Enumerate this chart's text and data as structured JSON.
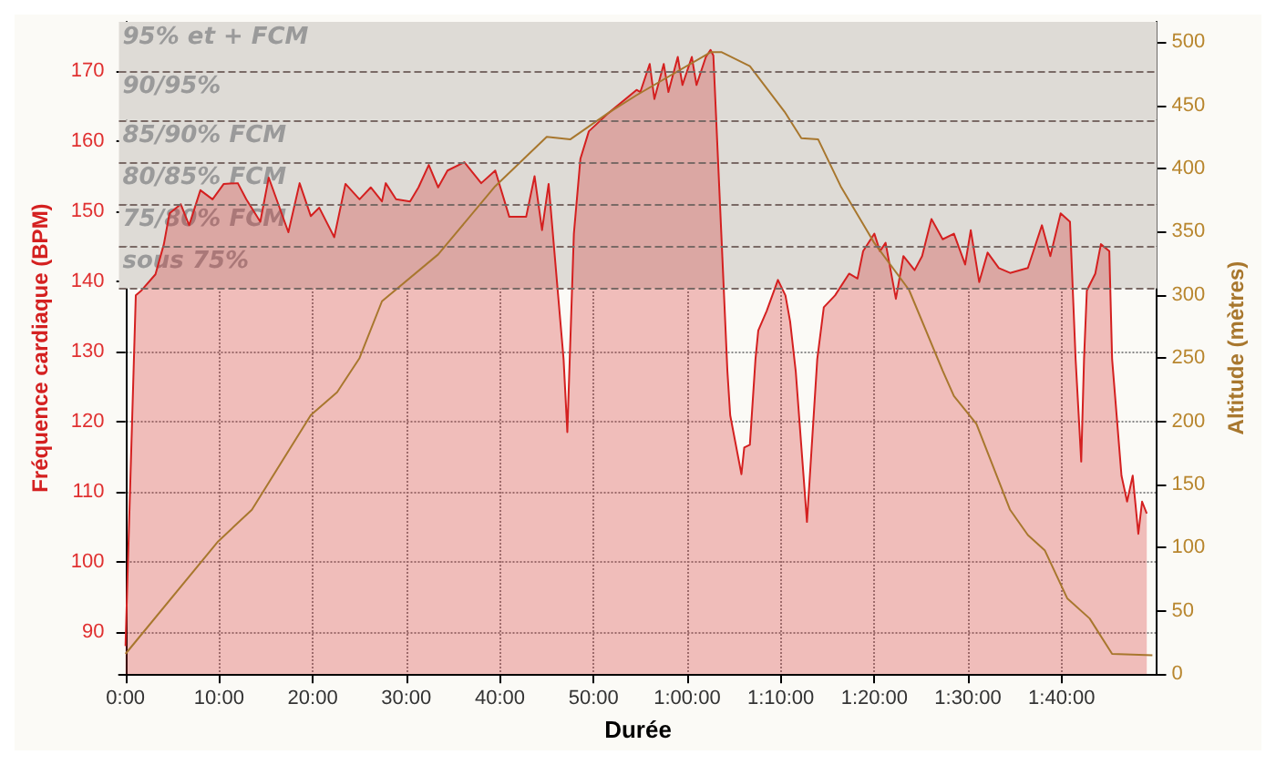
{
  "chart_data": {
    "type": "area",
    "xlabel": "Durée",
    "ylabel": "Fréquence cardiaque (BPM)",
    "y2label": "Altitude (mètres)",
    "xlim": [
      -0.7,
      110.2
    ],
    "xticks": [
      {
        "value": 0,
        "label": "0:00"
      },
      {
        "value": 10,
        "label": "10:00"
      },
      {
        "value": 20,
        "label": "20:00"
      },
      {
        "value": 30,
        "label": "30:00"
      },
      {
        "value": 40,
        "label": "40:00"
      },
      {
        "value": 50,
        "label": "50:00"
      },
      {
        "value": 60,
        "label": "1:00:00"
      },
      {
        "value": 70,
        "label": "1:10:00"
      },
      {
        "value": 80,
        "label": "1:20:00"
      },
      {
        "value": 90,
        "label": "1:30:00"
      },
      {
        "value": 100,
        "label": "1:40:00"
      }
    ],
    "ylim": [
      84,
      177
    ],
    "yticks": [
      90,
      100,
      110,
      120,
      130,
      140,
      150,
      160,
      170
    ],
    "y2lim": [
      0,
      516
    ],
    "y2ticks": [
      0,
      50,
      100,
      150,
      200,
      250,
      300,
      350,
      400,
      450,
      500
    ],
    "grid": true,
    "bands": [
      {
        "axis": "y",
        "from": 170,
        "to": 177,
        "label": "95% et + FCM",
        "color": "#dedbd6"
      },
      {
        "axis": "y",
        "from": 163,
        "to": 170,
        "label": "90/95%",
        "color": "#dedbd6"
      },
      {
        "axis": "y",
        "from": 157,
        "to": 163,
        "label": "85/90% FCM",
        "color": "#dedbd6"
      },
      {
        "axis": "y",
        "from": 151,
        "to": 157,
        "label": "80/85% FCM",
        "color": "#dedbd6"
      },
      {
        "axis": "y",
        "from": 145,
        "to": 151,
        "label": "75/80% FCM",
        "color": "#dedbd6"
      },
      {
        "axis": "y",
        "from": 139,
        "to": 145,
        "label": "sous 75%",
        "color": "#dedbd6"
      }
    ],
    "series": [
      {
        "color": "#d42020",
        "x": [
          0,
          1.1,
          1.7,
          3.2,
          4.1,
          4.7,
          5.9,
          6.8,
          8.0,
          9.3,
          10.5,
          12,
          12.9,
          14.4,
          15.3,
          17.4,
          18.6,
          19.8,
          20.7,
          22.3,
          23.5,
          25,
          26.2,
          27.4,
          27.8,
          28.9,
          30.4,
          31.3,
          32.4,
          33.4,
          34.4,
          36.2,
          38,
          39.5,
          41,
          42.8,
          43.7,
          44.5,
          45.2,
          46.8,
          47.2,
          47.9,
          48.6,
          49.5,
          51.6,
          54.6,
          55,
          56,
          56.5,
          57.5,
          58,
          59,
          59.5,
          60.5,
          61,
          62,
          62.5,
          62.8,
          63.7,
          64.3,
          64.6,
          65.8,
          66.1,
          66.7,
          67.3,
          67.6,
          68.5,
          69.7,
          70.5,
          71,
          71.6,
          72.8,
          73.9,
          74.6,
          75.8,
          77.3,
          78.2,
          78.8,
          80,
          80.6,
          81.2,
          82.3,
          83.1,
          84.3,
          85.1,
          86.1,
          87.3,
          88.5,
          89.7,
          90.3,
          91.2,
          92.1,
          93.3,
          94.5,
          96.4,
          97.9,
          98.8,
          99.9,
          100.9,
          101.5,
          102.1,
          102.4,
          102.7,
          103.6,
          104.2,
          105.1,
          105.4,
          106.4,
          107,
          107.6,
          108.2,
          108.6,
          109.1
        ],
        "values": [
          88,
          138,
          138.7,
          141,
          145.3,
          149.7,
          151,
          148,
          153,
          151.7,
          153.9,
          154,
          151.7,
          148.5,
          154.8,
          147,
          154,
          149.3,
          150.5,
          146.3,
          153.9,
          151.7,
          153.4,
          151.4,
          154,
          151.7,
          151.4,
          153.4,
          156.6,
          153.4,
          155.8,
          157,
          154,
          155.8,
          149.2,
          149.2,
          155,
          147.3,
          153.9,
          128.9,
          118.5,
          146.8,
          157.5,
          161.4,
          164,
          167.3,
          167,
          171,
          166,
          171,
          167,
          172,
          168,
          172,
          168,
          172,
          173,
          172.2,
          145.3,
          127.2,
          120.9,
          112.5,
          116.3,
          116.7,
          128.9,
          133,
          135.8,
          140.2,
          138,
          134.3,
          127.2,
          105.7,
          128.9,
          136.3,
          138,
          141.1,
          140.4,
          144.3,
          146.8,
          144.3,
          145.5,
          137.5,
          143.6,
          141.6,
          143.6,
          148.9,
          146,
          146.8,
          142.4,
          147.3,
          139.9,
          144.1,
          141.9,
          141.2,
          141.9,
          148,
          143.6,
          149.7,
          148.5,
          128.9,
          114.3,
          128.9,
          138.7,
          141.1,
          145.3,
          144.3,
          128.9,
          112.3,
          108.6,
          112.3,
          104,
          108.6,
          106.9
        ]
      },
      {
        "type": "line",
        "axis": "y2",
        "color": "#a8772e",
        "x": [
          0,
          9.9,
          13.5,
          19.8,
          22.6,
          25,
          27.4,
          33.4,
          39.5,
          45,
          47.5,
          51.6,
          54.6,
          62.5,
          63.7,
          66.7,
          70.4,
          72.2,
          74,
          76.4,
          80,
          83.7,
          87.3,
          88.5,
          90.9,
          94.5,
          96.4,
          98.2,
          100.6,
          103,
          105.4,
          109.7
        ],
        "values": [
          16,
          105,
          130,
          205,
          223,
          250,
          295,
          332,
          386,
          425,
          423,
          444,
          458,
          492,
          492,
          481,
          445,
          424,
          423,
          386,
          341,
          304,
          240,
          220,
          198,
          130,
          110,
          98,
          60,
          44,
          16,
          15
        ]
      }
    ]
  }
}
